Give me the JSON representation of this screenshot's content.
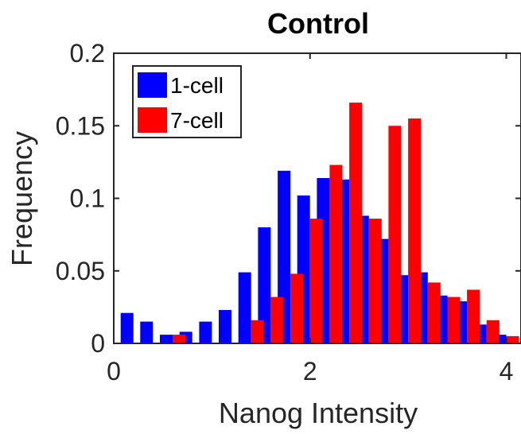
{
  "chart_data": {
    "type": "bar",
    "title": "Control",
    "xlabel": "Nanog Intensity",
    "ylabel": "Frequency",
    "xlim": [
      0,
      4.15
    ],
    "ylim": [
      0,
      0.2
    ],
    "xticks": [
      0,
      2,
      4
    ],
    "xtick_labels": [
      "0",
      "2",
      "4"
    ],
    "yticks": [
      0,
      0.05,
      0.1,
      0.15,
      0.2
    ],
    "ytick_labels": [
      "0",
      "0.05",
      "0.1",
      "0.15",
      "0.2"
    ],
    "legend_position": "top-left",
    "grid": false,
    "series": [
      {
        "name": "1-cell",
        "color": "#0000ff",
        "x": [
          0.2,
          0.4,
          0.6,
          0.8,
          1.0,
          1.2,
          1.4,
          1.6,
          1.8,
          2.0,
          2.2,
          2.4,
          2.6,
          2.8,
          3.0,
          3.2,
          3.4,
          3.6,
          3.8,
          4.0
        ],
        "values": [
          0.021,
          0.015,
          0.006,
          0.008,
          0.015,
          0.023,
          0.049,
          0.08,
          0.119,
          0.102,
          0.114,
          0.113,
          0.088,
          0.072,
          0.047,
          0.049,
          0.033,
          0.029,
          0.013,
          0.006
        ]
      },
      {
        "name": "7-cell",
        "color": "#ff0000",
        "x": [
          0.2,
          0.4,
          0.6,
          0.8,
          1.0,
          1.2,
          1.4,
          1.6,
          1.8,
          2.0,
          2.2,
          2.4,
          2.6,
          2.8,
          3.0,
          3.2,
          3.4,
          3.6,
          3.8,
          4.0
        ],
        "values": [
          0,
          0,
          0.006,
          0,
          0,
          0,
          0.016,
          0.032,
          0.048,
          0.086,
          0.123,
          0.166,
          0.086,
          0.15,
          0.155,
          0.042,
          0.032,
          0.037,
          0.016,
          0.005
        ]
      }
    ]
  }
}
